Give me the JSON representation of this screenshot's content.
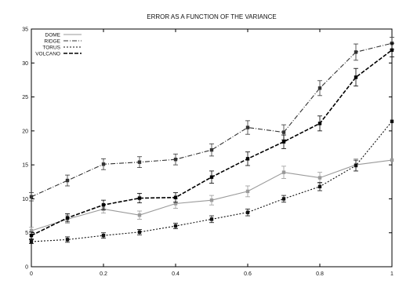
{
  "chart_data": {
    "type": "line",
    "title": "ERROR AS A FUNCTION OF THE VARIANCE",
    "xlabel": "",
    "ylabel": "",
    "xlim": [
      0,
      1
    ],
    "ylim": [
      0,
      35
    ],
    "x_ticks": [
      "0",
      "0.2",
      "0.4",
      "0.6",
      "0.8",
      "1"
    ],
    "y_ticks": [
      "0",
      "5",
      "10",
      "15",
      "20",
      "25",
      "30",
      "35"
    ],
    "grid": false,
    "legend_position": "top-left",
    "series": [
      {
        "name": "DOME",
        "style": "solid",
        "color": "#9a9a9a",
        "x": [
          0,
          0.1,
          0.2,
          0.3,
          0.4,
          0.5,
          0.6,
          0.7,
          0.8,
          0.9,
          1.0
        ],
        "y": [
          5.3,
          7.0,
          8.5,
          7.6,
          9.3,
          9.8,
          11.1,
          13.9,
          13.1,
          15.0,
          15.7
        ],
        "err": [
          0.5,
          0.6,
          0.6,
          0.6,
          0.7,
          0.7,
          0.8,
          0.9,
          0.8,
          0.9,
          0.0
        ]
      },
      {
        "name": "RIDGE",
        "style": "dash-dot",
        "color": "#333333",
        "x": [
          0,
          0.1,
          0.2,
          0.3,
          0.4,
          0.5,
          0.6,
          0.7,
          0.8,
          0.9,
          1.0
        ],
        "y": [
          10.3,
          12.7,
          15.1,
          15.4,
          15.8,
          17.2,
          20.5,
          19.8,
          26.3,
          31.6,
          32.9
        ],
        "err": [
          0.6,
          0.8,
          0.8,
          0.8,
          0.8,
          0.9,
          1.0,
          1.1,
          1.1,
          1.2,
          0.9
        ]
      },
      {
        "name": "TORUS",
        "style": "dotted",
        "color": "#111111",
        "x": [
          0,
          0.1,
          0.2,
          0.3,
          0.4,
          0.5,
          0.6,
          0.7,
          0.8,
          0.9,
          1.0
        ],
        "y": [
          3.7,
          4.0,
          4.6,
          5.1,
          6.0,
          7.0,
          8.0,
          10.0,
          11.8,
          14.9,
          21.4
        ],
        "err": [
          0.3,
          0.4,
          0.4,
          0.4,
          0.4,
          0.5,
          0.5,
          0.5,
          0.6,
          0.8,
          0.0
        ]
      },
      {
        "name": "VOLCANO",
        "style": "dashed",
        "color": "#000000",
        "x": [
          0,
          0.1,
          0.2,
          0.3,
          0.4,
          0.5,
          0.6,
          0.7,
          0.8,
          0.9,
          1.0
        ],
        "y": [
          4.6,
          7.2,
          9.1,
          10.1,
          10.2,
          13.2,
          15.9,
          18.4,
          21.1,
          27.9,
          31.9
        ],
        "err": [
          0.5,
          0.6,
          0.7,
          0.7,
          0.7,
          0.9,
          1.0,
          1.0,
          1.1,
          1.3,
          1.0
        ]
      }
    ]
  }
}
